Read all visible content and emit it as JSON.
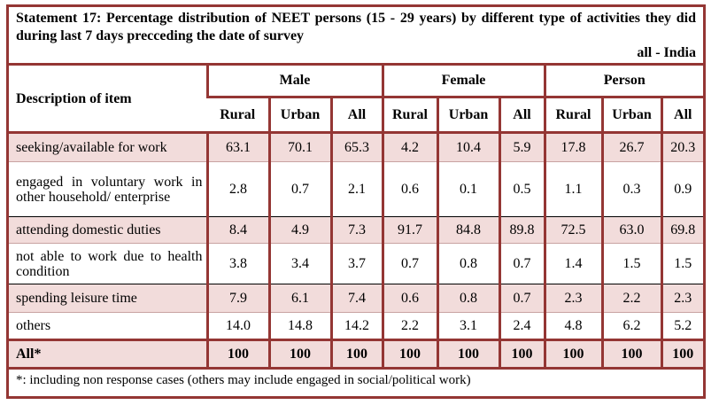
{
  "title": "Statement 17: Percentage distribution of NEET persons (15 - 29 years) by different type of activities they did during last 7 days precceding the date of survey",
  "region": "all - India",
  "header": {
    "description": "Description of item",
    "groups": [
      "Male",
      "Female",
      "Person"
    ],
    "sub": [
      "Rural",
      "Urban",
      "All"
    ]
  },
  "rows": [
    {
      "label": "seeking/available for work",
      "values": [
        "63.1",
        "70.1",
        "65.3",
        "4.2",
        "10.4",
        "5.9",
        "17.8",
        "26.7",
        "20.3"
      ]
    },
    {
      "label": "engaged in voluntary work in other household/ enterprise",
      "values": [
        "2.8",
        "0.7",
        "2.1",
        "0.6",
        "0.1",
        "0.5",
        "1.1",
        "0.3",
        "0.9"
      ]
    },
    {
      "label": "attending domestic duties",
      "values": [
        "8.4",
        "4.9",
        "7.3",
        "91.7",
        "84.8",
        "89.8",
        "72.5",
        "63.0",
        "69.8"
      ]
    },
    {
      "label": "not able to work due to health condition",
      "values": [
        "3.8",
        "3.4",
        "3.7",
        "0.7",
        "0.8",
        "0.7",
        "1.4",
        "1.5",
        "1.5"
      ]
    },
    {
      "label": "spending leisure time",
      "values": [
        "7.9",
        "6.1",
        "7.4",
        "0.6",
        "0.8",
        "0.7",
        "2.3",
        "2.2",
        "2.3"
      ]
    },
    {
      "label": "others",
      "values": [
        "14.0",
        "14.8",
        "14.2",
        "2.2",
        "3.1",
        "2.4",
        "4.8",
        "6.2",
        "5.2"
      ]
    }
  ],
  "total": {
    "label": "All*",
    "values": [
      "100",
      "100",
      "100",
      "100",
      "100",
      "100",
      "100",
      "100",
      "100"
    ]
  },
  "footnote": "*: including non response cases (others may include engaged in social/political work)"
}
